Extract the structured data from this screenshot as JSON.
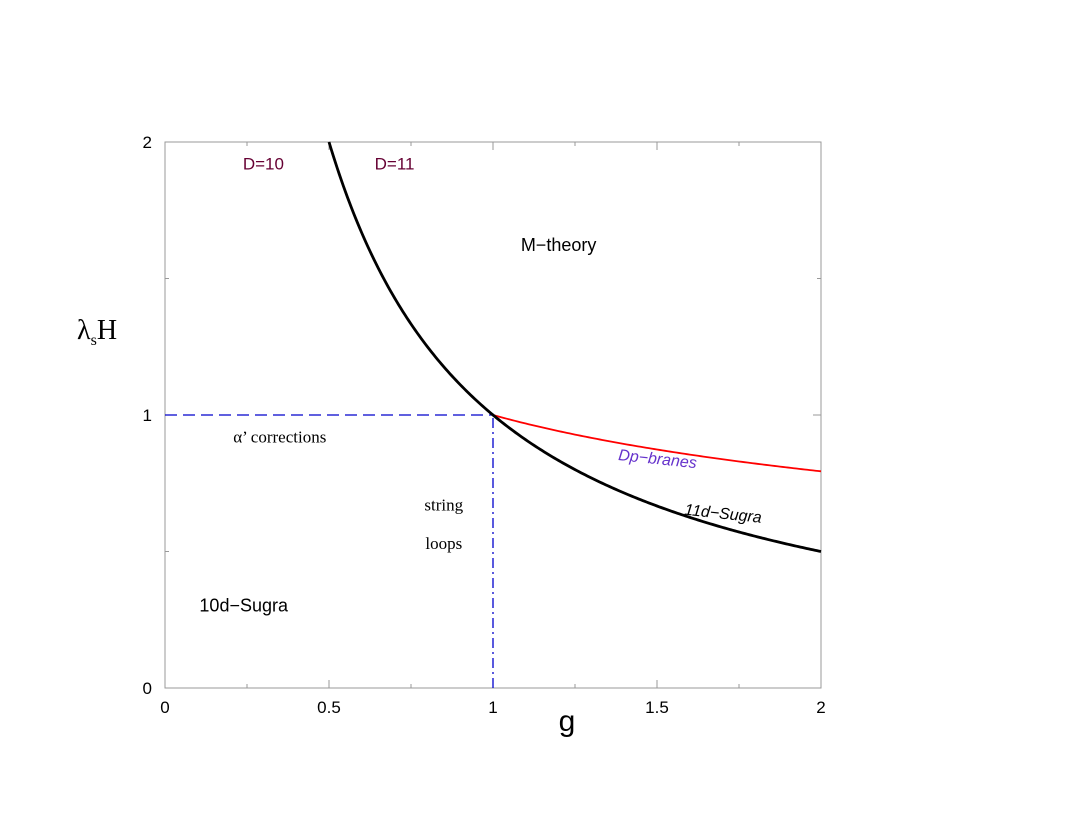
{
  "chart_data": {
    "type": "line",
    "title": "",
    "xlabel": "g",
    "ylabel_main": "λ",
    "ylabel_sub": "s",
    "ylabel_tail": "H",
    "xlim": [
      0,
      2
    ],
    "ylim": [
      0,
      2
    ],
    "x_ticks": [
      "0",
      "0.5",
      "1",
      "1.5",
      "2"
    ],
    "y_ticks": [
      "0",
      "1",
      "2"
    ],
    "grid": false,
    "series": [
      {
        "curve": "11d boundary",
        "formula": "1/g",
        "x_start": 0.5,
        "x_end": 2,
        "color": "#000000"
      },
      {
        "curve": "Dp-branes boundary",
        "formula": "g^(-1/3)",
        "x_start": 1,
        "x_end": 2,
        "color": "#ff0000"
      },
      {
        "curve": "alpha' boundary",
        "style": "dashed",
        "y": 1,
        "x_start": 0,
        "x_end": 1,
        "color": "#0000cc"
      },
      {
        "curve": "string loops boundary",
        "style": "dashdot",
        "x": 1,
        "y_start": 0,
        "y_end": 1,
        "color": "#0000cc"
      }
    ],
    "annotations": [
      {
        "id": "d10",
        "text": "D=10",
        "x": 0.3,
        "y": 1.9,
        "color": "#660033"
      },
      {
        "id": "d11",
        "text": "D=11",
        "x": 0.7,
        "y": 1.9,
        "color": "#660033"
      },
      {
        "id": "mtheory",
        "text": "M−theory",
        "x": 1.2,
        "y": 1.6,
        "color": "#000000"
      },
      {
        "id": "alpha",
        "text": "α’ corrections",
        "x": 0.35,
        "y": 0.9,
        "color": "#000000"
      },
      {
        "id": "dpbranes",
        "text": "Dp−branes",
        "x": 1.5,
        "y": 0.82,
        "color": "#6633cc"
      },
      {
        "id": "sugra11",
        "text": "11d−Sugra",
        "x": 1.7,
        "y": 0.62,
        "color": "#000000"
      },
      {
        "id": "string",
        "text": "string",
        "x": 0.85,
        "y": 0.65,
        "color": "#000000"
      },
      {
        "id": "loops",
        "text": "loops",
        "x": 0.85,
        "y": 0.51,
        "color": "#000000"
      },
      {
        "id": "sugra10",
        "text": "10d−Sugra",
        "x": 0.24,
        "y": 0.28,
        "color": "#000000"
      }
    ]
  }
}
